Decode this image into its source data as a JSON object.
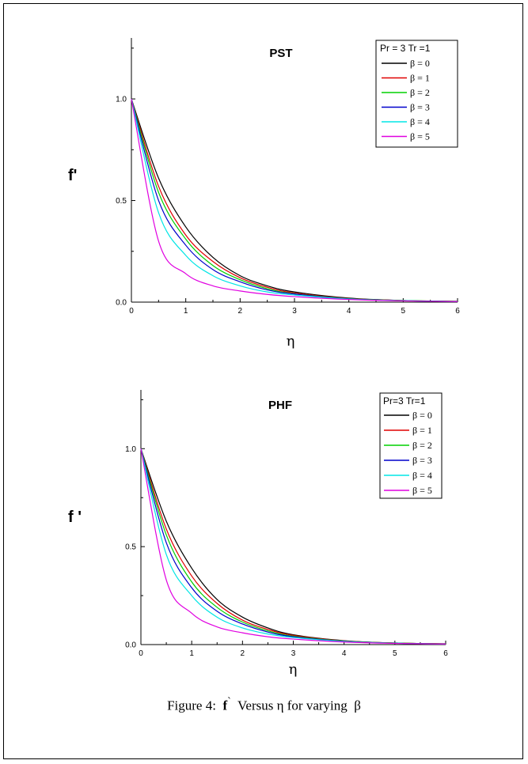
{
  "caption": {
    "prefix": "Figure 4:",
    "fvar": "f",
    "prime": "`",
    "middle": "Versus η for varying",
    "beta": "β"
  },
  "colors": [
    "#000000",
    "#e00000",
    "#00d000",
    "#0000cc",
    "#00e5e5",
    "#e000e0"
  ],
  "chart_data": [
    {
      "type": "line",
      "title": "PST",
      "xlabel": "η",
      "ylabel": "f'",
      "xlim": [
        0,
        6
      ],
      "ylim": [
        0,
        1.3
      ],
      "x_ticks": [
        "0",
        "1",
        "2",
        "3",
        "4",
        "5",
        "6"
      ],
      "y_ticks": [
        "0.0",
        "0.5",
        "1.0"
      ],
      "grid": false,
      "legend_position": "top-right",
      "legend_title": "Pr = 3 Tr =1",
      "x": [
        0,
        0.5,
        1,
        1.5,
        2,
        2.5,
        3,
        4,
        5,
        6
      ],
      "series": [
        {
          "name": "β = 0",
          "values": [
            1.0,
            0.61,
            0.37,
            0.22,
            0.13,
            0.08,
            0.05,
            0.02,
            0.008,
            0.004
          ]
        },
        {
          "name": "β = 1",
          "values": [
            1.0,
            0.57,
            0.33,
            0.2,
            0.12,
            0.073,
            0.045,
            0.018,
            0.008,
            0.004
          ]
        },
        {
          "name": "β = 2",
          "values": [
            1.0,
            0.54,
            0.31,
            0.18,
            0.11,
            0.066,
            0.041,
            0.017,
            0.008,
            0.004
          ]
        },
        {
          "name": "β = 3",
          "values": [
            1.0,
            0.5,
            0.28,
            0.16,
            0.1,
            0.06,
            0.04,
            0.016,
            0.007,
            0.003
          ]
        },
        {
          "name": "β = 4",
          "values": [
            1.0,
            0.44,
            0.23,
            0.13,
            0.08,
            0.05,
            0.035,
            0.015,
            0.007,
            0.003
          ]
        },
        {
          "name": "β = 5",
          "values": [
            1.0,
            0.3,
            0.14,
            0.08,
            0.055,
            0.038,
            0.027,
            0.013,
            0.006,
            0.003
          ]
        }
      ]
    },
    {
      "type": "line",
      "title": "PHF",
      "xlabel": "η",
      "ylabel": "f '",
      "xlim": [
        0,
        6
      ],
      "ylim": [
        0,
        1.3
      ],
      "x_ticks": [
        "0",
        "1",
        "2",
        "3",
        "4",
        "5",
        "6"
      ],
      "y_ticks": [
        "0.0",
        "0.5",
        "1.0"
      ],
      "grid": false,
      "legend_position": "top-right",
      "legend_title": "Pr=3 Tr=1",
      "x": [
        0,
        0.5,
        1,
        1.5,
        2,
        2.5,
        3,
        4,
        5,
        6
      ],
      "series": [
        {
          "name": "β = 0",
          "values": [
            1.0,
            0.63,
            0.39,
            0.23,
            0.14,
            0.085,
            0.05,
            0.02,
            0.008,
            0.004
          ]
        },
        {
          "name": "β = 1",
          "values": [
            1.0,
            0.59,
            0.35,
            0.21,
            0.125,
            0.077,
            0.047,
            0.019,
            0.008,
            0.004
          ]
        },
        {
          "name": "β = 2",
          "values": [
            1.0,
            0.56,
            0.32,
            0.19,
            0.115,
            0.07,
            0.043,
            0.018,
            0.008,
            0.004
          ]
        },
        {
          "name": "β = 3",
          "values": [
            1.0,
            0.52,
            0.29,
            0.17,
            0.105,
            0.064,
            0.04,
            0.017,
            0.007,
            0.003
          ]
        },
        {
          "name": "β = 4",
          "values": [
            1.0,
            0.46,
            0.25,
            0.14,
            0.085,
            0.054,
            0.036,
            0.016,
            0.007,
            0.003
          ]
        },
        {
          "name": "β = 5",
          "values": [
            1.0,
            0.33,
            0.16,
            0.09,
            0.06,
            0.04,
            0.028,
            0.013,
            0.006,
            0.003
          ]
        }
      ]
    }
  ]
}
